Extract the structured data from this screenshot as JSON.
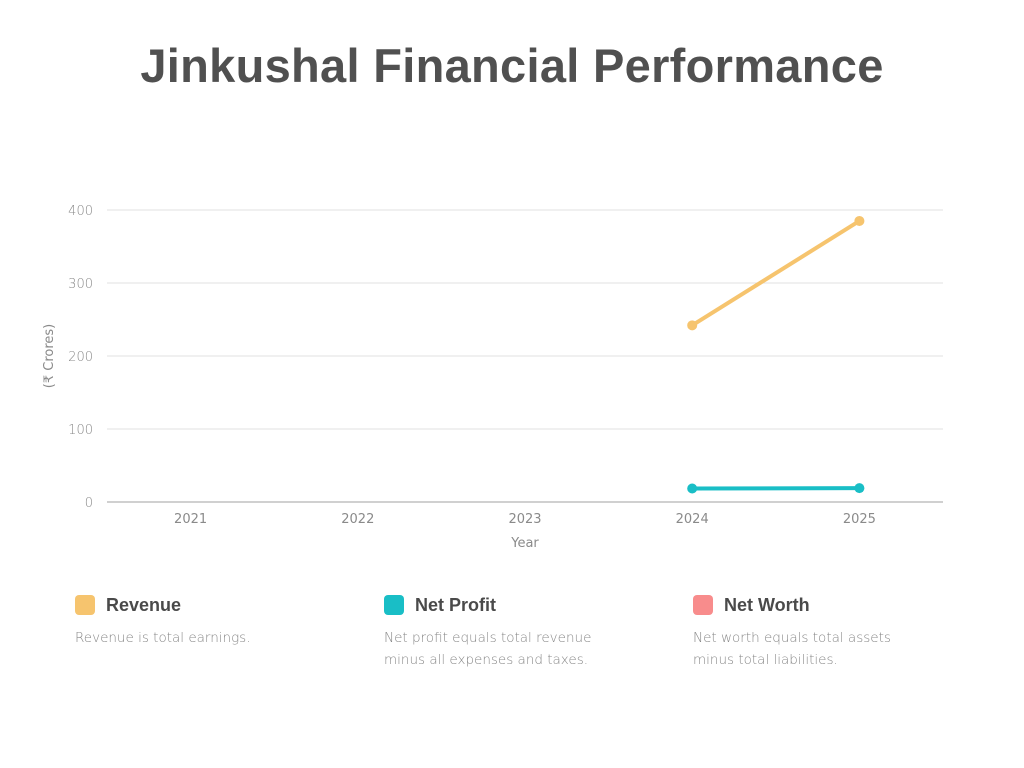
{
  "header": {
    "title": "Jinkushal Financial Performance"
  },
  "colors": {
    "revenue": "#F6C46E",
    "net_profit": "#19BEC6",
    "net_worth": "#F88C8C",
    "grid": "#e2e2e2",
    "axis": "#b5b5b5"
  },
  "chart_data": {
    "type": "line",
    "title": "Jinkushal Financial Performance",
    "xlabel": "Year",
    "ylabel": "(₹ Crores)",
    "categories": [
      "2021",
      "2022",
      "2023",
      "2024",
      "2025"
    ],
    "y_ticks": [
      "0",
      "100",
      "200",
      "300",
      "400"
    ],
    "ylim": [
      0,
      400
    ],
    "grid": true,
    "legend_position": "bottom",
    "series": [
      {
        "name": "Revenue",
        "color": "#F6C46E",
        "values": [
          null,
          null,
          null,
          242,
          385
        ]
      },
      {
        "name": "Net Profit",
        "color": "#19BEC6",
        "values": [
          null,
          null,
          null,
          18.5,
          19
        ]
      },
      {
        "name": "Net Worth",
        "color": "#F88C8C",
        "values": [
          null,
          null,
          null,
          null,
          null
        ]
      }
    ]
  },
  "legend": [
    {
      "name": "Revenue",
      "description": "Revenue is total earnings.",
      "color": "#F6C46E"
    },
    {
      "name": "Net Profit",
      "description": "Net profit equals total revenue minus all expenses and taxes.",
      "color": "#19BEC6"
    },
    {
      "name": "Net Worth",
      "description": "Net worth equals total assets minus total liabilities.",
      "color": "#F88C8C"
    }
  ]
}
